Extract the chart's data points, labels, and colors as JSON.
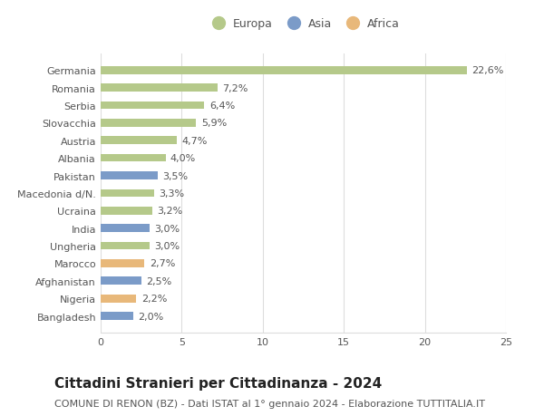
{
  "categories": [
    "Bangladesh",
    "Nigeria",
    "Afghanistan",
    "Marocco",
    "Ungheria",
    "India",
    "Ucraina",
    "Macedonia d/N.",
    "Pakistan",
    "Albania",
    "Austria",
    "Slovacchia",
    "Serbia",
    "Romania",
    "Germania"
  ],
  "values": [
    2.0,
    2.2,
    2.5,
    2.7,
    3.0,
    3.0,
    3.2,
    3.3,
    3.5,
    4.0,
    4.7,
    5.9,
    6.4,
    7.2,
    22.6
  ],
  "labels": [
    "2,0%",
    "2,2%",
    "2,5%",
    "2,7%",
    "3,0%",
    "3,0%",
    "3,2%",
    "3,3%",
    "3,5%",
    "4,0%",
    "4,7%",
    "5,9%",
    "6,4%",
    "7,2%",
    "22,6%"
  ],
  "continents": [
    "Asia",
    "Africa",
    "Asia",
    "Africa",
    "Europa",
    "Asia",
    "Europa",
    "Europa",
    "Asia",
    "Europa",
    "Europa",
    "Europa",
    "Europa",
    "Europa",
    "Europa"
  ],
  "colors": {
    "Europa": "#b5c98a",
    "Asia": "#7b9bc8",
    "Africa": "#e8b87a"
  },
  "legend_labels": [
    "Europa",
    "Asia",
    "Africa"
  ],
  "title": "Cittadini Stranieri per Cittadinanza - 2024",
  "subtitle": "COMUNE DI RENON (BZ) - Dati ISTAT al 1° gennaio 2024 - Elaborazione TUTTITALIA.IT",
  "xlabel_ticks": [
    0,
    5,
    10,
    15,
    20,
    25
  ],
  "xlim": [
    0,
    25
  ],
  "bar_height": 0.45,
  "background_color": "#ffffff",
  "grid_color": "#dddddd",
  "text_color": "#555555",
  "label_fontsize": 8,
  "tick_label_fontsize": 8,
  "title_fontsize": 11,
  "subtitle_fontsize": 8
}
